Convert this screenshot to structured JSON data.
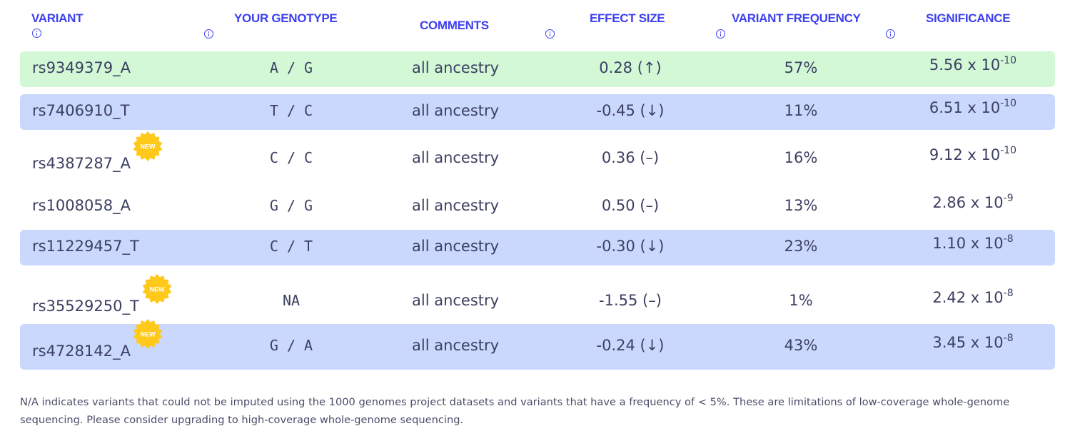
{
  "header": {
    "variant": "VARIANT",
    "genotype": "YOUR GENOTYPE",
    "comments": "COMMENTS",
    "effect_size": "EFFECT SIZE",
    "variant_frequency": "VARIANT FREQUENCY",
    "significance": "SIGNIFICANCE"
  },
  "badge_label": "NEW",
  "colors": {
    "accent": "#3d3ff0",
    "green_row": "#d2f8d6",
    "blue_row": "#cad8fd",
    "badge": "#ffc91b"
  },
  "rows": [
    {
      "variant": "rs9349379_A",
      "genotype": "A / G",
      "comment": "all ancestry",
      "effect": "0.28 (↑)",
      "freq": "57%",
      "sig_base": "5.56 x 10",
      "sig_exp": "-10",
      "highlight": "green",
      "is_new": false
    },
    {
      "variant": "rs7406910_T",
      "genotype": "T / C",
      "comment": "all ancestry",
      "effect": "-0.45 (↓)",
      "freq": "11%",
      "sig_base": "6.51 x 10",
      "sig_exp": "-10",
      "highlight": "blue",
      "is_new": false
    },
    {
      "variant": "rs4387287_A",
      "genotype": "C / C",
      "comment": "all ancestry",
      "effect": "0.36 (–)",
      "freq": "16%",
      "sig_base": "9.12 x 10",
      "sig_exp": "-10",
      "highlight": "none",
      "is_new": true
    },
    {
      "variant": "rs1008058_A",
      "genotype": "G / G",
      "comment": "all ancestry",
      "effect": "0.50 (–)",
      "freq": "13%",
      "sig_base": "2.86 x 10",
      "sig_exp": "-9",
      "highlight": "none",
      "is_new": false
    },
    {
      "variant": "rs11229457_T",
      "genotype": "C / T",
      "comment": "all ancestry",
      "effect": "-0.30 (↓)",
      "freq": "23%",
      "sig_base": "1.10 x 10",
      "sig_exp": "-8",
      "highlight": "blue",
      "is_new": false
    },
    {
      "variant": "rs35529250_T",
      "genotype": "NA",
      "comment": "all ancestry",
      "effect": "-1.55 (–)",
      "freq": "1%",
      "sig_base": "2.42 x 10",
      "sig_exp": "-8",
      "highlight": "none",
      "is_new": true
    },
    {
      "variant": "rs4728142_A",
      "genotype": "G / A",
      "comment": "all ancestry",
      "effect": "-0.24 (↓)",
      "freq": "43%",
      "sig_base": "3.45 x 10",
      "sig_exp": "-8",
      "highlight": "blue",
      "is_new": true
    }
  ],
  "footnote": "N/A indicates variants that could not be imputed using the 1000 genomes project datasets and variants that have a frequency of < 5%. These are limitations of low-coverage whole-genome sequencing. Please consider upgrading to high-coverage whole-genome sequencing."
}
